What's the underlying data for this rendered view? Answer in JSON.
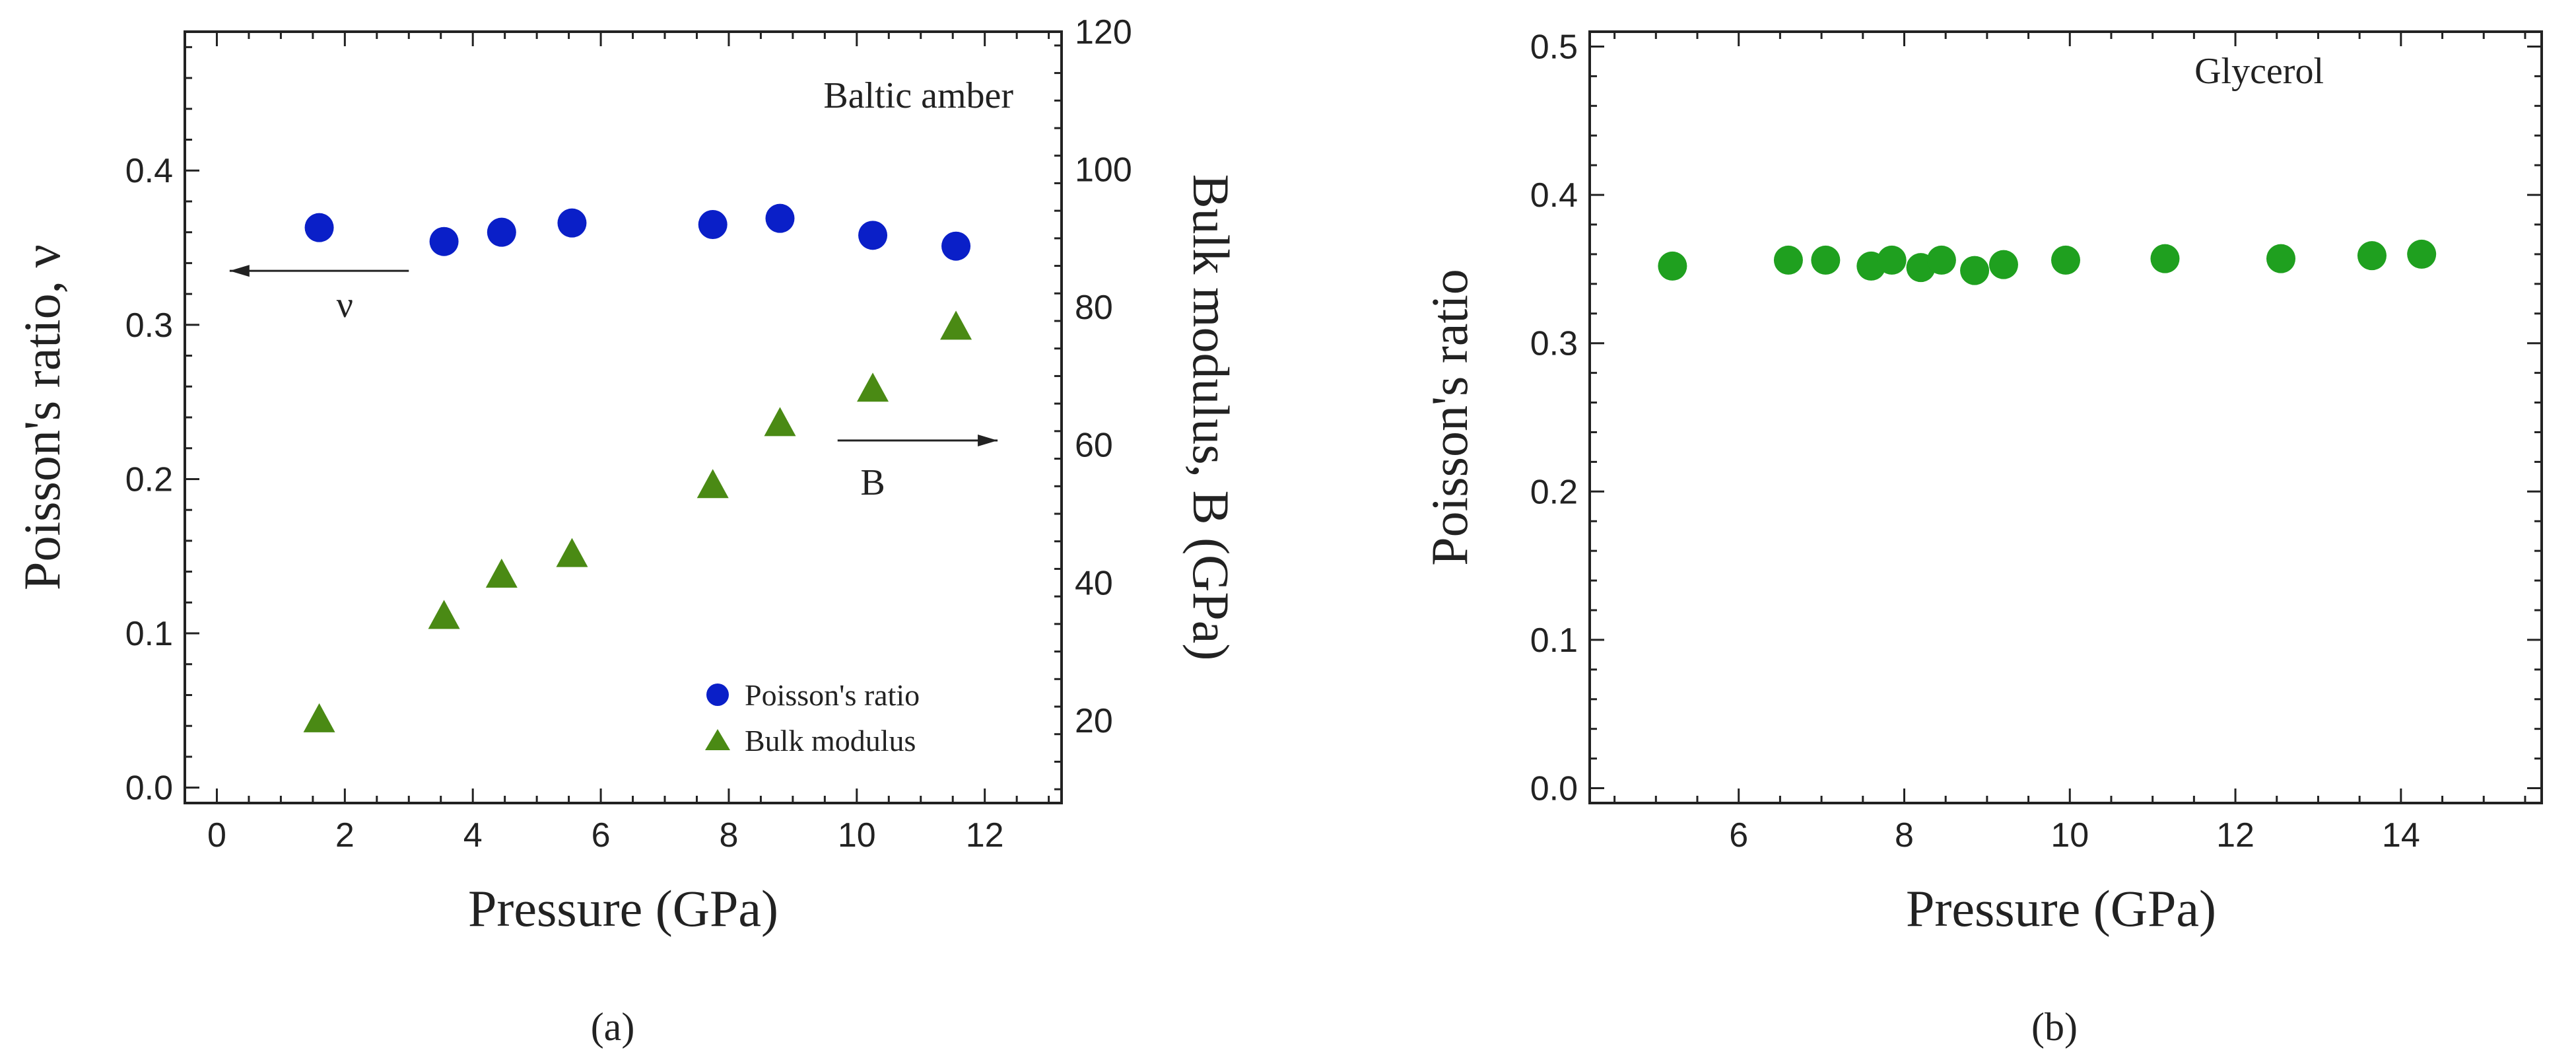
{
  "chart_data": [
    {
      "type": "scatter",
      "panel_caption": "(a)",
      "annotation_title": "Baltic amber",
      "xlabel": "Pressure (GPa)",
      "ylabel": "Poisson's ratio, ν",
      "ylabel_right": "Bulk modulus, B (GPa)",
      "xlim": [
        -0.5,
        13.2
      ],
      "ylim": [
        -0.01,
        0.49
      ],
      "ylim_right": [
        8,
        120
      ],
      "xticks": [
        0,
        2,
        4,
        6,
        8,
        10,
        12
      ],
      "yticks": [
        0.0,
        0.1,
        0.2,
        0.3,
        0.4
      ],
      "yticks_labels": [
        "0.0",
        "0.1",
        "0.2",
        "0.3",
        "0.4"
      ],
      "yticks_right": [
        20,
        40,
        60,
        80,
        100,
        120
      ],
      "series": [
        {
          "name": "Poisson's ratio",
          "axis": "left",
          "marker": "circle",
          "color": "#0a1fc8",
          "x": [
            1.6,
            3.55,
            4.45,
            5.55,
            7.75,
            8.8,
            10.25,
            11.55
          ],
          "y": [
            0.363,
            0.354,
            0.36,
            0.366,
            0.365,
            0.369,
            0.358,
            0.351
          ]
        },
        {
          "name": "Bulk modulus",
          "axis": "right",
          "marker": "triangle",
          "color": "#4a8a14",
          "x": [
            1.6,
            3.55,
            4.45,
            5.55,
            7.75,
            8.8,
            10.25,
            11.55
          ],
          "y": [
            20.0,
            35.0,
            41.0,
            44.0,
            54.0,
            63.0,
            68.0,
            77.0
          ]
        }
      ],
      "annotations": [
        {
          "text": "ν",
          "arrow": "left",
          "from_x": 3.0,
          "to_x": 0.2,
          "at_y": 0.335,
          "label_x": 2.0,
          "label_y": 0.305
        },
        {
          "text": "B",
          "arrow": "right",
          "from_x": 9.7,
          "to_x": 12.2,
          "at_y": 0.225,
          "label_x": 10.25,
          "label_y": 0.19
        }
      ],
      "legend": {
        "position": "bottom-right",
        "entries": [
          "Poisson's ratio",
          "Bulk modulus"
        ]
      }
    },
    {
      "type": "scatter",
      "panel_caption": "(b)",
      "annotation_title": "Glycerol",
      "xlabel": "Pressure (GPa)",
      "ylabel": "Poisson's ratio",
      "xlim": [
        4.2,
        15.7
      ],
      "ylim": [
        -0.01,
        0.51
      ],
      "xticks": [
        6,
        8,
        10,
        12,
        14
      ],
      "yticks": [
        0.0,
        0.1,
        0.2,
        0.3,
        0.4,
        0.5
      ],
      "yticks_labels": [
        "0.0",
        "0.1",
        "0.2",
        "0.3",
        "0.4",
        "0.5"
      ],
      "series": [
        {
          "name": "Glycerol",
          "marker": "circle",
          "color": "#1fa01f",
          "x": [
            5.2,
            6.6,
            7.05,
            7.6,
            7.85,
            8.2,
            8.45,
            8.85,
            9.2,
            9.95,
            11.15,
            12.55,
            13.65,
            14.25
          ],
          "y": [
            0.352,
            0.356,
            0.356,
            0.352,
            0.356,
            0.351,
            0.356,
            0.349,
            0.353,
            0.356,
            0.357,
            0.357,
            0.359,
            0.36
          ]
        }
      ]
    }
  ]
}
